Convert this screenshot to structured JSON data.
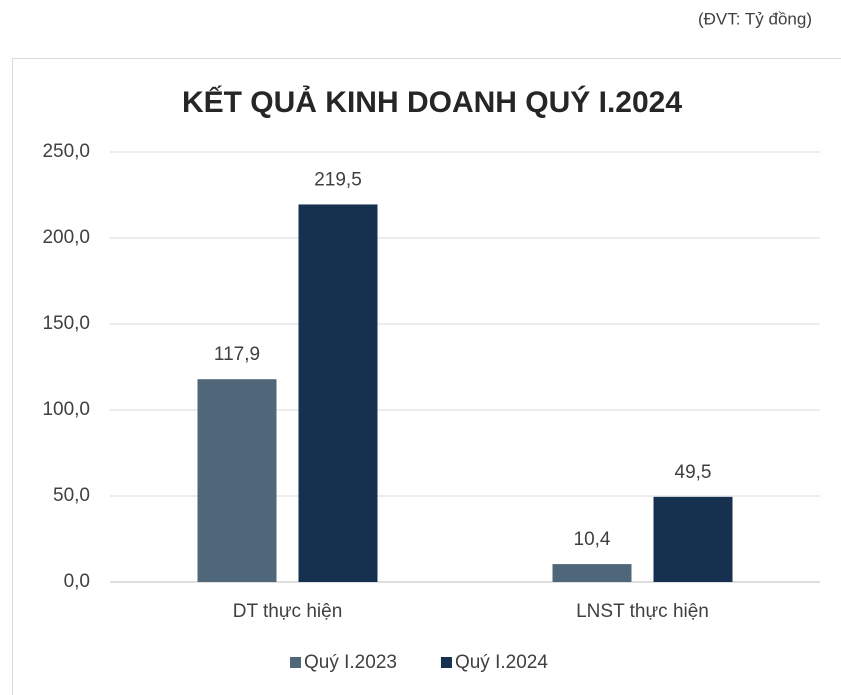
{
  "chart_data": {
    "type": "bar",
    "title": "KẾT QUẢ KINH DOANH QUÝ I.2024",
    "annotation": "(ĐVT: Tỷ đồng)",
    "categories": [
      "DT thực hiện",
      "LNST thực hiện"
    ],
    "series": [
      {
        "name": "Quý I.2023",
        "color": "#506679",
        "values": [
          117.9,
          10.4
        ],
        "value_labels": [
          "117,9",
          "10,4"
        ]
      },
      {
        "name": "Quý I.2024",
        "color": "#15314f",
        "values": [
          219.5,
          49.5
        ],
        "value_labels": [
          "219,5",
          "49,5"
        ]
      }
    ],
    "ylim": [
      0,
      250
    ],
    "yticks": [
      {
        "value": 0,
        "label": "0,0"
      },
      {
        "value": 50,
        "label": "50,0"
      },
      {
        "value": 100,
        "label": "100,0"
      },
      {
        "value": 150,
        "label": "150,0"
      },
      {
        "value": 200,
        "label": "200,0"
      },
      {
        "value": 250,
        "label": "250,0"
      }
    ],
    "grid": true,
    "legend": "bottom"
  }
}
